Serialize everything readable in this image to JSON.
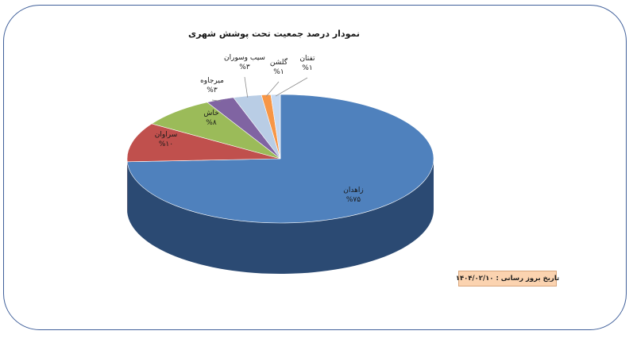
{
  "chart_data": {
    "type": "pie",
    "title": "نمودار درصد جمعیت تحت پوشش شهری",
    "slices": [
      {
        "name": "زاهدان",
        "value": 75,
        "label": "%۷۵",
        "color": "#4f81bd",
        "side": "#2b4a73"
      },
      {
        "name": "سراوان",
        "value": 10,
        "label": "%۱۰",
        "color": "#c0504d",
        "side": "#7a2f2d"
      },
      {
        "name": "خاش",
        "value": 8,
        "label": "%۸",
        "color": "#9bbb59",
        "side": "#5e7433"
      },
      {
        "name": "میرجاوه",
        "value": 3,
        "label": "%۳",
        "color": "#8064a2",
        "side": "#4c3a62"
      },
      {
        "name": "سیب وسوران",
        "value": 3,
        "label": "%۳",
        "color": "#b9cde5",
        "side": "#7f93ab"
      },
      {
        "name": "گلشن",
        "value": 1,
        "label": "%۱",
        "color": "#f79646",
        "side": "#a45c22"
      },
      {
        "name": "تفتان",
        "value": 1,
        "label": "%۱",
        "color": "#c6d9f1",
        "side": "#8ea0b8"
      }
    ]
  },
  "footer": {
    "date_label": "تاریخ بروز رسانی : ۱۴۰۴/۰۲/۱۰"
  }
}
